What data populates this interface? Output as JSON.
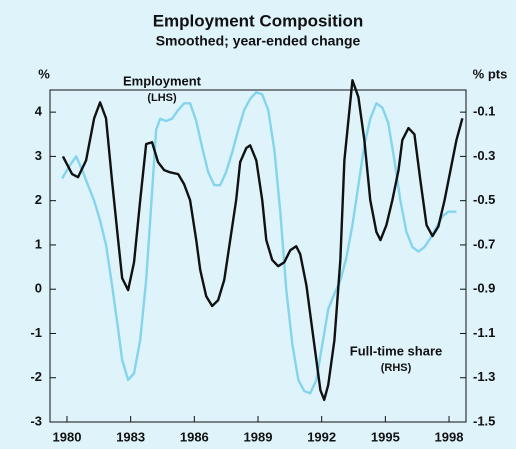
{
  "chart_data": {
    "type": "line",
    "title": "Employment Composition",
    "subtitle": "Smoothed; year-ended change",
    "y_axis_label": "%",
    "y2_axis_label": "% pts",
    "annotations": [
      "Employment",
      "(LHS)",
      "Full-time share",
      "(RHS)"
    ],
    "xlim": [
      1979.2,
      1998.8
    ],
    "xticks": [
      1980,
      1983,
      1986,
      1989,
      1992,
      1995,
      1998
    ],
    "ylim": [
      -3,
      4.5
    ],
    "yticks": [
      -3,
      -2,
      -1,
      0,
      1,
      2,
      3,
      4
    ],
    "y2lim": [
      -1.5,
      0
    ],
    "y2ticks": [
      -1.5,
      -1.3,
      -1.1,
      -0.9,
      -0.7,
      -0.5,
      -0.3,
      -0.1
    ],
    "series": [
      {
        "name": "Employment",
        "color": "#111111",
        "axis": "y",
        "x": [
          1979.81,
          1980.24,
          1980.52,
          1980.9,
          1981.28,
          1981.56,
          1981.84,
          1982.12,
          1982.41,
          1982.6,
          1982.88,
          1983.16,
          1983.45,
          1983.73,
          1984.01,
          1984.29,
          1984.58,
          1984.86,
          1985.24,
          1985.52,
          1985.8,
          1986.09,
          1986.28,
          1986.56,
          1986.84,
          1987.12,
          1987.41,
          1987.69,
          1987.97,
          1988.16,
          1988.45,
          1988.63,
          1988.92,
          1989.2,
          1989.39,
          1989.67,
          1989.95,
          1990.24,
          1990.52,
          1990.8,
          1990.99,
          1991.28,
          1991.56,
          1991.75,
          1991.94,
          1992.12,
          1992.31,
          1992.6,
          1992.88,
          1993.07,
          1993.26,
          1993.45,
          1993.73,
          1994.01,
          1994.29,
          1994.58,
          1994.77,
          1995.05,
          1995.33,
          1995.62,
          1995.8,
          1996.09,
          1996.37,
          1996.65,
          1996.94,
          1997.22,
          1997.5,
          1997.79,
          1998.07,
          1998.35,
          1998.63
        ],
        "values": [
          3.0,
          2.6,
          2.53,
          2.91,
          3.86,
          4.22,
          3.86,
          2.46,
          1.11,
          0.25,
          -0.02,
          0.61,
          2.01,
          3.28,
          3.32,
          2.87,
          2.69,
          2.64,
          2.6,
          2.37,
          2.01,
          1.11,
          0.43,
          -0.16,
          -0.38,
          -0.25,
          0.21,
          1.11,
          2.01,
          2.87,
          3.19,
          3.25,
          2.91,
          2.01,
          1.11,
          0.66,
          0.52,
          0.61,
          0.88,
          0.97,
          0.79,
          0.09,
          -0.92,
          -1.6,
          -2.28,
          -2.5,
          -2.16,
          -1.15,
          0.66,
          2.91,
          3.82,
          4.72,
          4.34,
          3.37,
          2.01,
          1.29,
          1.11,
          1.45,
          2.01,
          2.69,
          3.37,
          3.64,
          3.5,
          2.46,
          1.45,
          1.2,
          1.42,
          2.01,
          2.69,
          3.37,
          3.86
        ]
      },
      {
        "name": "Full-time share",
        "color": "#84d4ee",
        "axis": "y2",
        "x": [
          1979.77,
          1980.14,
          1980.43,
          1980.71,
          1980.99,
          1981.28,
          1981.56,
          1981.84,
          1982.12,
          1982.41,
          1982.6,
          1982.88,
          1983.16,
          1983.45,
          1983.73,
          1983.92,
          1984.2,
          1984.39,
          1984.67,
          1984.95,
          1985.24,
          1985.52,
          1985.8,
          1986.09,
          1986.37,
          1986.65,
          1986.94,
          1987.22,
          1987.5,
          1987.79,
          1988.07,
          1988.35,
          1988.63,
          1988.92,
          1989.2,
          1989.48,
          1989.77,
          1990.05,
          1990.33,
          1990.62,
          1990.9,
          1991.18,
          1991.46,
          1991.75,
          1992.03,
          1992.31,
          1992.6,
          1992.88,
          1993.16,
          1993.45,
          1993.73,
          1994.01,
          1994.29,
          1994.58,
          1994.86,
          1995.14,
          1995.43,
          1995.71,
          1995.99,
          1996.28,
          1996.56,
          1996.84,
          1997.12,
          1997.41,
          1997.69,
          1997.97,
          1998.35
        ],
        "values": [
          -0.4,
          -0.34,
          -0.3,
          -0.36,
          -0.43,
          -0.5,
          -0.59,
          -0.7,
          -0.88,
          -1.08,
          -1.22,
          -1.31,
          -1.28,
          -1.13,
          -0.86,
          -0.59,
          -0.18,
          -0.13,
          -0.14,
          -0.13,
          -0.09,
          -0.06,
          -0.06,
          -0.14,
          -0.26,
          -0.37,
          -0.43,
          -0.43,
          -0.37,
          -0.28,
          -0.18,
          -0.09,
          -0.04,
          -0.01,
          -0.02,
          -0.09,
          -0.27,
          -0.55,
          -0.9,
          -1.15,
          -1.31,
          -1.36,
          -1.37,
          -1.31,
          -1.15,
          -0.99,
          -0.92,
          -0.86,
          -0.76,
          -0.61,
          -0.43,
          -0.25,
          -0.13,
          -0.06,
          -0.08,
          -0.15,
          -0.32,
          -0.5,
          -0.64,
          -0.71,
          -0.73,
          -0.71,
          -0.67,
          -0.62,
          -0.57,
          -0.55,
          -0.55
        ]
      }
    ]
  }
}
